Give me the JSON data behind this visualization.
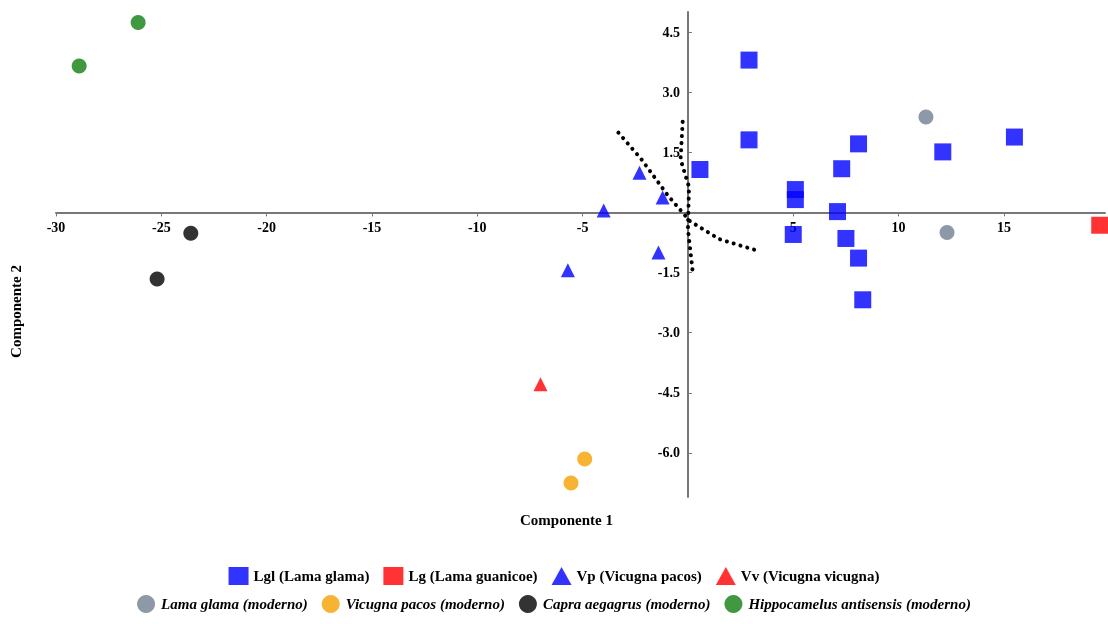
{
  "chart_data": {
    "type": "scatter",
    "xlabel": "Componente 1",
    "ylabel": "Componente 2",
    "xlim": [
      -30,
      19.8
    ],
    "ylim": [
      -7.1,
      5.0
    ],
    "xticks": [
      -30,
      -25,
      -20,
      -15,
      -10,
      -5,
      {
        "value": 0,
        "label": null
      },
      5,
      10,
      15
    ],
    "yticks": [
      {
        "value": -6,
        "label": "-6.0"
      },
      {
        "value": -4.5,
        "label": "-4.5"
      },
      {
        "value": -3,
        "label": "-3.0"
      },
      {
        "value": -1.5,
        "label": "-1.5"
      },
      {
        "value": 0,
        "label": null
      },
      {
        "value": 1.5,
        "label": "1.5"
      },
      {
        "value": 3,
        "label": "3.0"
      },
      {
        "value": 4.5,
        "label": "4.5"
      }
    ],
    "legend": "bottom",
    "series": [
      {
        "name": "Lgl (Lama glama)",
        "color": "#0000ff",
        "marker": "square",
        "x": [
          2.9,
          2.9,
          0.57,
          5.1,
          5.1,
          5.0,
          7.3,
          8.1,
          7.1,
          7.5,
          8.1,
          8.3,
          12.1,
          15.5
        ],
        "values": [
          3.8,
          1.81,
          1.07,
          0.57,
          0.32,
          -0.55,
          1.09,
          1.71,
          0.02,
          -0.65,
          -1.14,
          -2.18,
          1.51,
          1.88
        ]
      },
      {
        "name": "Lg (Lama guanicoe)",
        "color": "#ff0000",
        "marker": "square",
        "x": [
          19.55
        ],
        "values": [
          -0.32
        ]
      },
      {
        "name": "Vp (Vicugna pacos)",
        "color": "#0000ff",
        "marker": "triangle",
        "x": [
          -2.3,
          -1.2,
          -4.0,
          -1.4,
          -5.7
        ],
        "values": [
          0.99,
          0.37,
          0.05,
          -1.0,
          -1.44
        ]
      },
      {
        "name": "Vv (Vicugna vicugna)",
        "color": "#ff0000",
        "marker": "triangle",
        "x": [
          -7.0
        ],
        "values": [
          -4.29
        ]
      },
      {
        "name": "Lama glama (moderno)",
        "color": "#708090",
        "marker": "circle",
        "x": [
          11.3,
          12.3
        ],
        "values": [
          2.38,
          -0.5
        ]
      },
      {
        "name": "Vicugna pacos (moderno)",
        "color": "#f5a000",
        "marker": "circle",
        "x": [
          -4.9,
          -5.55
        ],
        "values": [
          -6.15,
          -6.75
        ]
      },
      {
        "name": "Capra aegagrus (moderno)",
        "color": "#000000",
        "marker": "circle",
        "x": [
          -23.6,
          -25.2
        ],
        "values": [
          -0.52,
          -1.66
        ]
      },
      {
        "name": "Hippocamelus antisensis (moderno)",
        "color": "#108010",
        "marker": "circle",
        "x": [
          -28.9,
          -26.1
        ],
        "values": [
          3.65,
          4.74
        ]
      },
      {
        "type": "line",
        "color": "#000000",
        "line_style": "dotted",
        "marker": "none",
        "x": [
          -3.3,
          -2.2,
          -0.95,
          0.1,
          1.5,
          3.4
        ],
        "values": [
          1.99,
          1.32,
          0.42,
          -0.22,
          -0.67,
          -0.97
        ]
      },
      {
        "type": "line",
        "color": "#000000",
        "line_style": "dotted",
        "marker": "none",
        "x": [
          -0.25,
          -0.35,
          0.05,
          0.0,
          0.2,
          0.25
        ],
        "values": [
          2.26,
          1.32,
          0.64,
          -0.42,
          -1.36,
          -1.59
        ]
      }
    ]
  }
}
